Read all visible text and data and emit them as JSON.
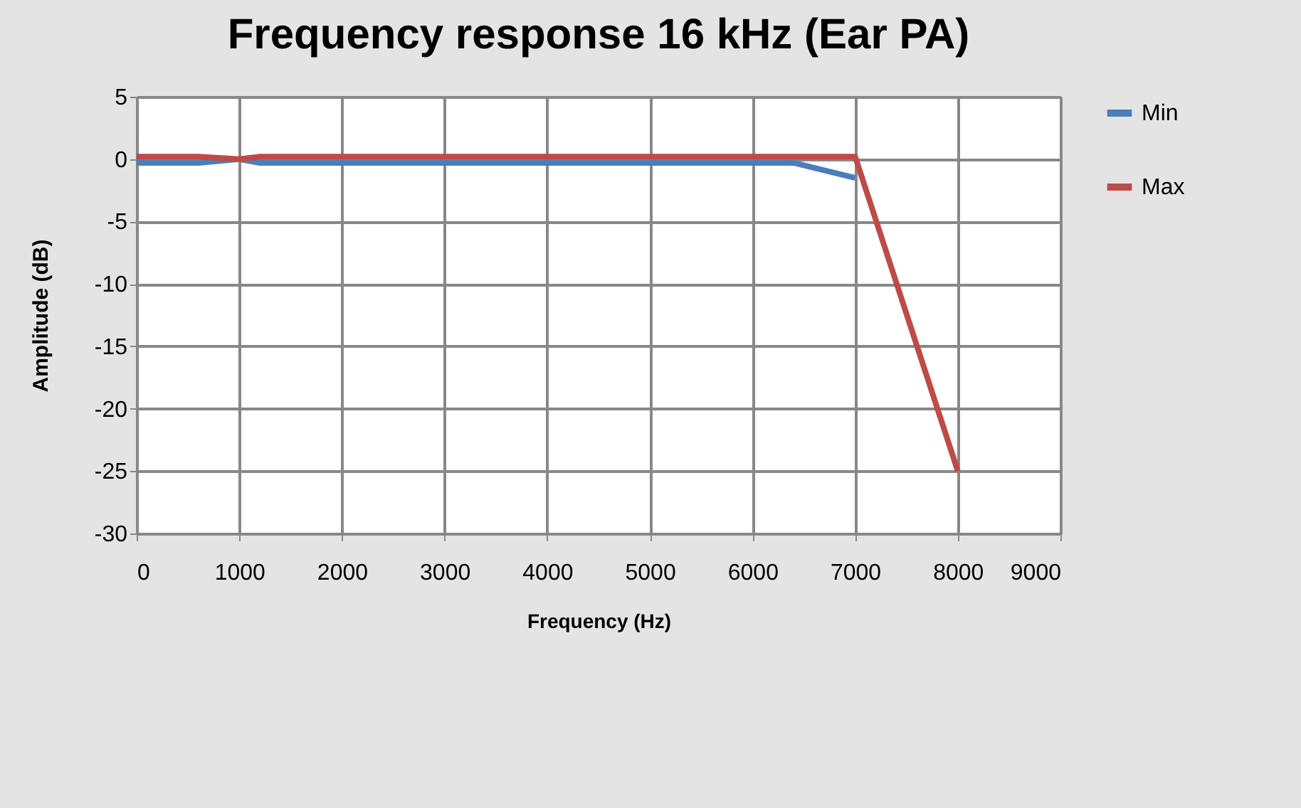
{
  "chart_data": {
    "type": "line",
    "title": "Frequency response 16 kHz (Ear PA)",
    "xlabel": "Frequency (Hz)",
    "ylabel": "Amplitude (dB)",
    "series": [
      {
        "name": "Min",
        "color": "#4a7ebb",
        "x": [
          0,
          600,
          1000,
          1200,
          6400,
          7000
        ],
        "values": [
          -0.3,
          -0.3,
          0,
          -0.3,
          -0.3,
          -1.5
        ]
      },
      {
        "name": "Max",
        "color": "#be4b48",
        "x": [
          0,
          600,
          1000,
          1200,
          7000,
          8000
        ],
        "values": [
          0.2,
          0.2,
          0,
          0.2,
          0.2,
          -25
        ]
      }
    ],
    "xlim": [
      0,
      9000
    ],
    "xticks": [
      0,
      1000,
      2000,
      3000,
      4000,
      5000,
      6000,
      7000,
      8000,
      9000
    ],
    "ylim": [
      -30,
      5
    ],
    "yticks": [
      -30,
      -25,
      -20,
      -15,
      -10,
      -5,
      0,
      5
    ],
    "grid": true,
    "legend": "right",
    "marker": "none",
    "line_style": "solid"
  }
}
